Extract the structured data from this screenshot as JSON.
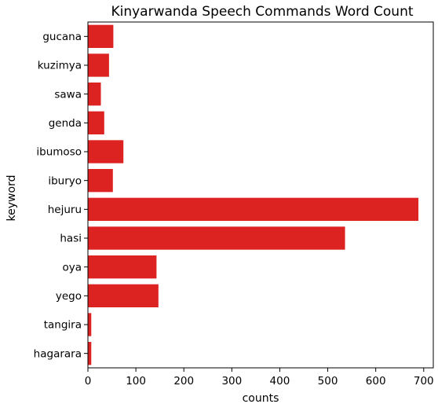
{
  "chart_data": {
    "type": "bar",
    "orientation": "horizontal",
    "title": "Kinyarwanda Speech Commands Word Count",
    "xlabel": "counts",
    "ylabel": "keyword",
    "categories": [
      "gucana",
      "kuzimya",
      "sawa",
      "genda",
      "ibumoso",
      "iburyo",
      "hejuru",
      "hasi",
      "oya",
      "yego",
      "tangira",
      "hagarara"
    ],
    "values": [
      53,
      44,
      27,
      34,
      74,
      52,
      689,
      536,
      143,
      147,
      7,
      7
    ],
    "xlim": [
      0,
      720
    ],
    "xticks": [
      0,
      100,
      200,
      300,
      400,
      500,
      600,
      700
    ],
    "grid": false,
    "bar_color": "#dd2222"
  }
}
